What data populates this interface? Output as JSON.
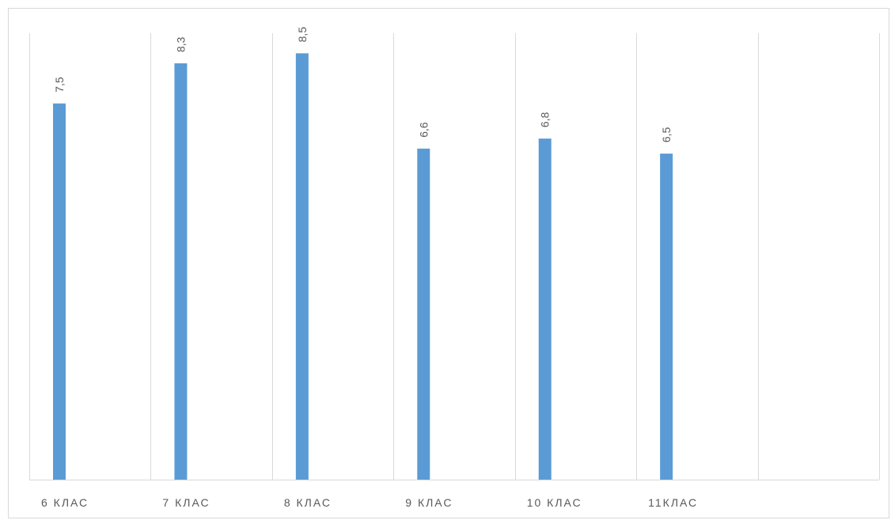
{
  "chart_data": {
    "type": "bar",
    "categories": [
      "6 КЛАС",
      "7 КЛАС",
      "8 КЛАС",
      "9 КЛАС",
      "10 КЛАС",
      "11КЛАС",
      ""
    ],
    "values": [
      7.5,
      8.3,
      8.5,
      6.6,
      6.8,
      6.5,
      null
    ],
    "data_labels": [
      "7,5",
      "8,3",
      "8,5",
      "6,6",
      "6,8",
      "6,5",
      ""
    ],
    "title": "",
    "xlabel": "",
    "ylabel": "",
    "ylim": [
      0,
      8.9
    ],
    "grid": "vertical",
    "legend": "none",
    "colors": {
      "bar": "#5b9bd5",
      "grid": "#d9d9d9",
      "text": "#595959"
    }
  }
}
